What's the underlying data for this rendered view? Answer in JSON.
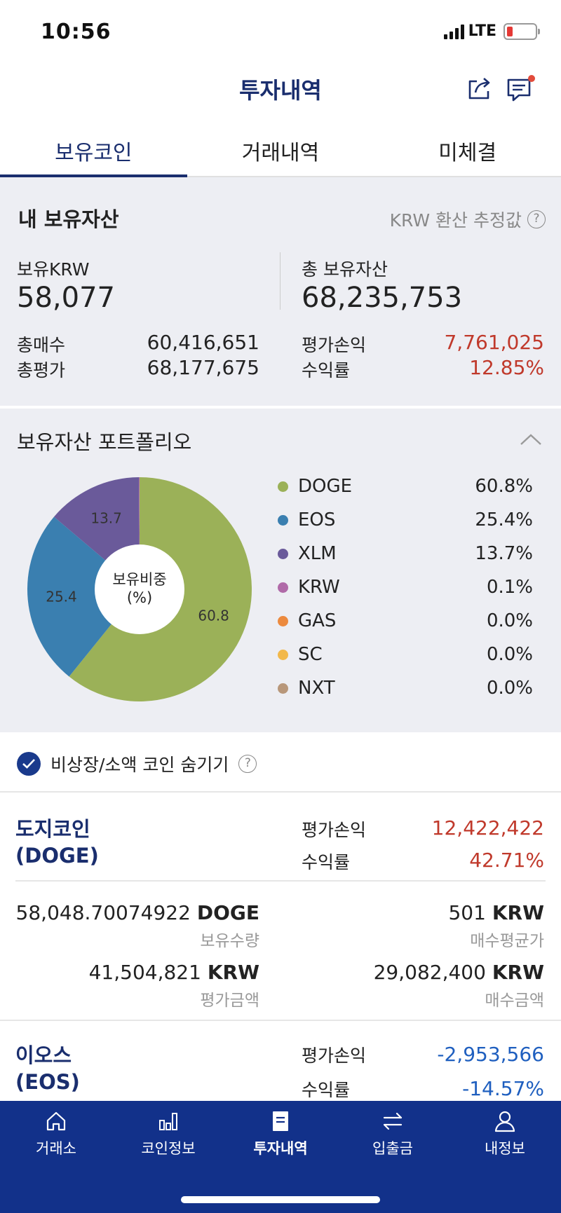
{
  "status_bar": {
    "time": "10:56",
    "network": "LTE"
  },
  "header": {
    "title": "투자내역"
  },
  "tabs": [
    {
      "label": "보유코인",
      "active": true
    },
    {
      "label": "거래내역",
      "active": false
    },
    {
      "label": "미체결",
      "active": false
    }
  ],
  "assets": {
    "title": "내 보유자산",
    "krw_note": "KRW 환산 추정값",
    "held_krw_label": "보유KRW",
    "held_krw_value": "58,077",
    "total_assets_label": "총 보유자산",
    "total_assets_value": "68,235,753",
    "total_buy_label": "총매수",
    "total_buy_value": "60,416,651",
    "total_eval_label": "총평가",
    "total_eval_value": "68,177,675",
    "pl_label": "평가손익",
    "pl_value": "7,761,025",
    "return_label": "수익률",
    "return_value": "12.85%"
  },
  "portfolio": {
    "title": "보유자산 포트폴리오",
    "center_label_1": "보유비중",
    "center_label_2": "(%)",
    "legend": [
      {
        "name": "DOGE",
        "pct": "60.8%",
        "color": "#9bb158"
      },
      {
        "name": "EOS",
        "pct": "25.4%",
        "color": "#3a7fb0"
      },
      {
        "name": "XLM",
        "pct": "13.7%",
        "color": "#6a5a9a"
      },
      {
        "name": "KRW",
        "pct": "0.1%",
        "color": "#b06aa8"
      },
      {
        "name": "GAS",
        "pct": "0.0%",
        "color": "#ec8a3e"
      },
      {
        "name": "SC",
        "pct": "0.0%",
        "color": "#f2b84a"
      },
      {
        "name": "NXT",
        "pct": "0.0%",
        "color": "#b8977a"
      }
    ]
  },
  "chart_data": {
    "type": "pie",
    "categories": [
      "DOGE",
      "EOS",
      "XLM",
      "KRW",
      "GAS",
      "SC",
      "NXT"
    ],
    "values": [
      60.8,
      25.4,
      13.7,
      0.1,
      0.0,
      0.0,
      0.0
    ],
    "labels_on_chart": [
      "60.8",
      "25.4",
      "13.7"
    ],
    "title": "",
    "center_text": "보유비중 (%)",
    "legend_position": "right"
  },
  "hide_toggle": {
    "label": "비상장/소액 코인 숨기기",
    "checked": true
  },
  "coins": [
    {
      "name_line1": "도지코인",
      "name_line2": "(DOGE)",
      "pl_label": "평가손익",
      "pl_value": "12,422,422",
      "return_label": "수익률",
      "return_value": "42.71%",
      "quantity_value": "58,048.70074922",
      "quantity_unit": "DOGE",
      "quantity_label": "보유수량",
      "avg_price_value": "501",
      "avg_price_unit": "KRW",
      "avg_price_label": "매수평균가",
      "eval_amount_value": "41,504,821",
      "eval_amount_unit": "KRW",
      "eval_amount_label": "평가금액",
      "buy_amount_value": "29,082,400",
      "buy_amount_unit": "KRW",
      "buy_amount_label": "매수금액"
    },
    {
      "name_line1": "이오스",
      "name_line2": "(EOS)",
      "pl_label": "평가손익",
      "pl_value": "-2,953,566",
      "return_label": "수익률",
      "return_value": "-14.57%"
    }
  ],
  "bottom_nav": [
    {
      "label": "거래소",
      "icon": "home-icon"
    },
    {
      "label": "코인정보",
      "icon": "bar-chart-icon"
    },
    {
      "label": "투자내역",
      "icon": "document-icon",
      "active": true
    },
    {
      "label": "입출금",
      "icon": "transfer-icon"
    },
    {
      "label": "내정보",
      "icon": "person-icon"
    }
  ],
  "colors": {
    "brand_navy": "#1a2e6e",
    "nav_bg": "#12318a",
    "positive_red": "#c0392b",
    "negative_blue": "#1f5fbf",
    "panel_bg": "#edeef3"
  }
}
